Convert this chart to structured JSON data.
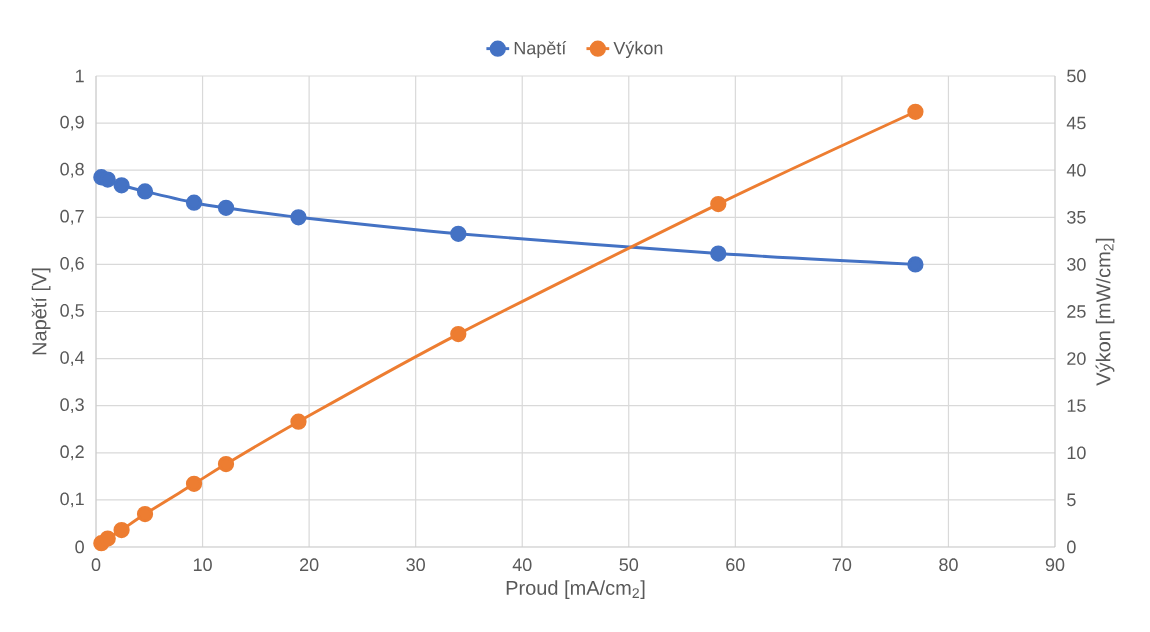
{
  "chart_data": {
    "type": "line",
    "xlabel": "Proud [mA/cm$_{2}$]",
    "ylabel": "Napětí [V]",
    "y2label": "Výkon [mW/cm$_{2}$]",
    "x": [
      0.5,
      1.1,
      2.4,
      4.6,
      9.2,
      12.2,
      19,
      34,
      58.4,
      76.9
    ],
    "series": [
      {
        "name": "Napětí",
        "color": "#4472c4",
        "values": [
          0.785,
          0.78,
          0.768,
          0.755,
          0.731,
          0.72,
          0.7,
          0.665,
          0.623,
          0.6
        ]
      },
      {
        "name": "Výkon",
        "color": "#ed7d31",
        "axis": "y2",
        "values": [
          0.4,
          0.9,
          1.8,
          3.5,
          6.7,
          8.8,
          13.3,
          22.6,
          36.4,
          46.2
        ]
      }
    ],
    "xlim": [
      0,
      90
    ],
    "xticks": [
      0,
      10,
      20,
      30,
      40,
      50,
      60,
      70,
      80,
      90
    ],
    "ylim": [
      0,
      1
    ],
    "yticks": [
      0,
      {
        "value": 0.1,
        "label": "0,1"
      },
      {
        "value": 0.2,
        "label": "0,2"
      },
      {
        "value": 0.3,
        "label": "0,3"
      },
      {
        "value": 0.4,
        "label": "0,4"
      },
      {
        "value": 0.5,
        "label": "0,5"
      },
      {
        "value": 0.6,
        "label": "0,6"
      },
      {
        "value": 0.7,
        "label": "0,7"
      },
      {
        "value": 0.8,
        "label": "0,8"
      },
      {
        "value": 0.9,
        "label": "0,9"
      },
      1
    ],
    "y2lim": [
      0,
      50
    ],
    "y2ticks": [
      0,
      5,
      10,
      15,
      20,
      25,
      30,
      35,
      40,
      45,
      50
    ],
    "grid": true,
    "legend": "top",
    "marker": "circle"
  }
}
